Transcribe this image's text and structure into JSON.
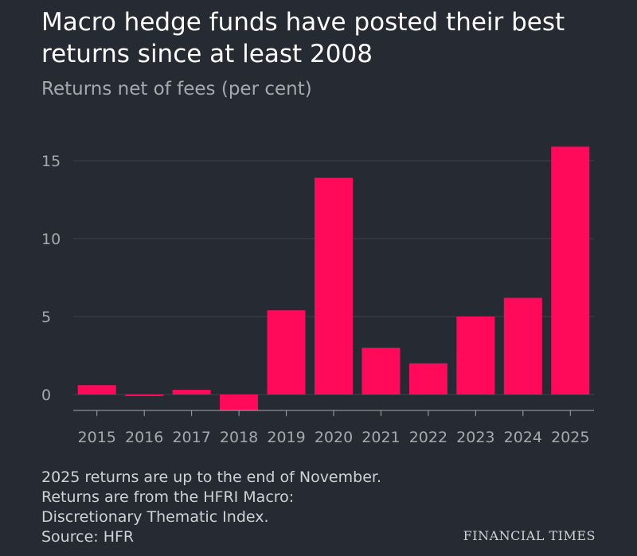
{
  "title": "Macro hedge funds have posted their best returns since at least 2008",
  "subtitle": "Returns net of fees (per cent)",
  "notes": [
    "2025 returns are up to the end of November.",
    "Returns are from the HFRI Macro:",
    "Discretionary Thematic Index.",
    "Source: HFR"
  ],
  "brand": "FINANCIAL TIMES",
  "colors": {
    "background": "#262a33",
    "bar": "#ff0a5a",
    "grid": "#3d414a",
    "axis": "#a6a8ae"
  },
  "chart_data": {
    "type": "bar",
    "categories": [
      "2015",
      "2016",
      "2017",
      "2018",
      "2019",
      "2020",
      "2021",
      "2022",
      "2023",
      "2024",
      "2025"
    ],
    "values": [
      0.6,
      -0.1,
      0.3,
      -1.0,
      5.4,
      13.9,
      3.0,
      2.0,
      5.0,
      6.2,
      15.9
    ],
    "title": "Macro hedge funds have posted their best returns since at least 2008",
    "subtitle": "Returns net of fees (per cent)",
    "xlabel": "",
    "ylabel": "",
    "ylim": [
      -1,
      16
    ],
    "yticks": [
      0,
      5,
      10,
      15
    ],
    "grid": true,
    "legend": "none"
  }
}
